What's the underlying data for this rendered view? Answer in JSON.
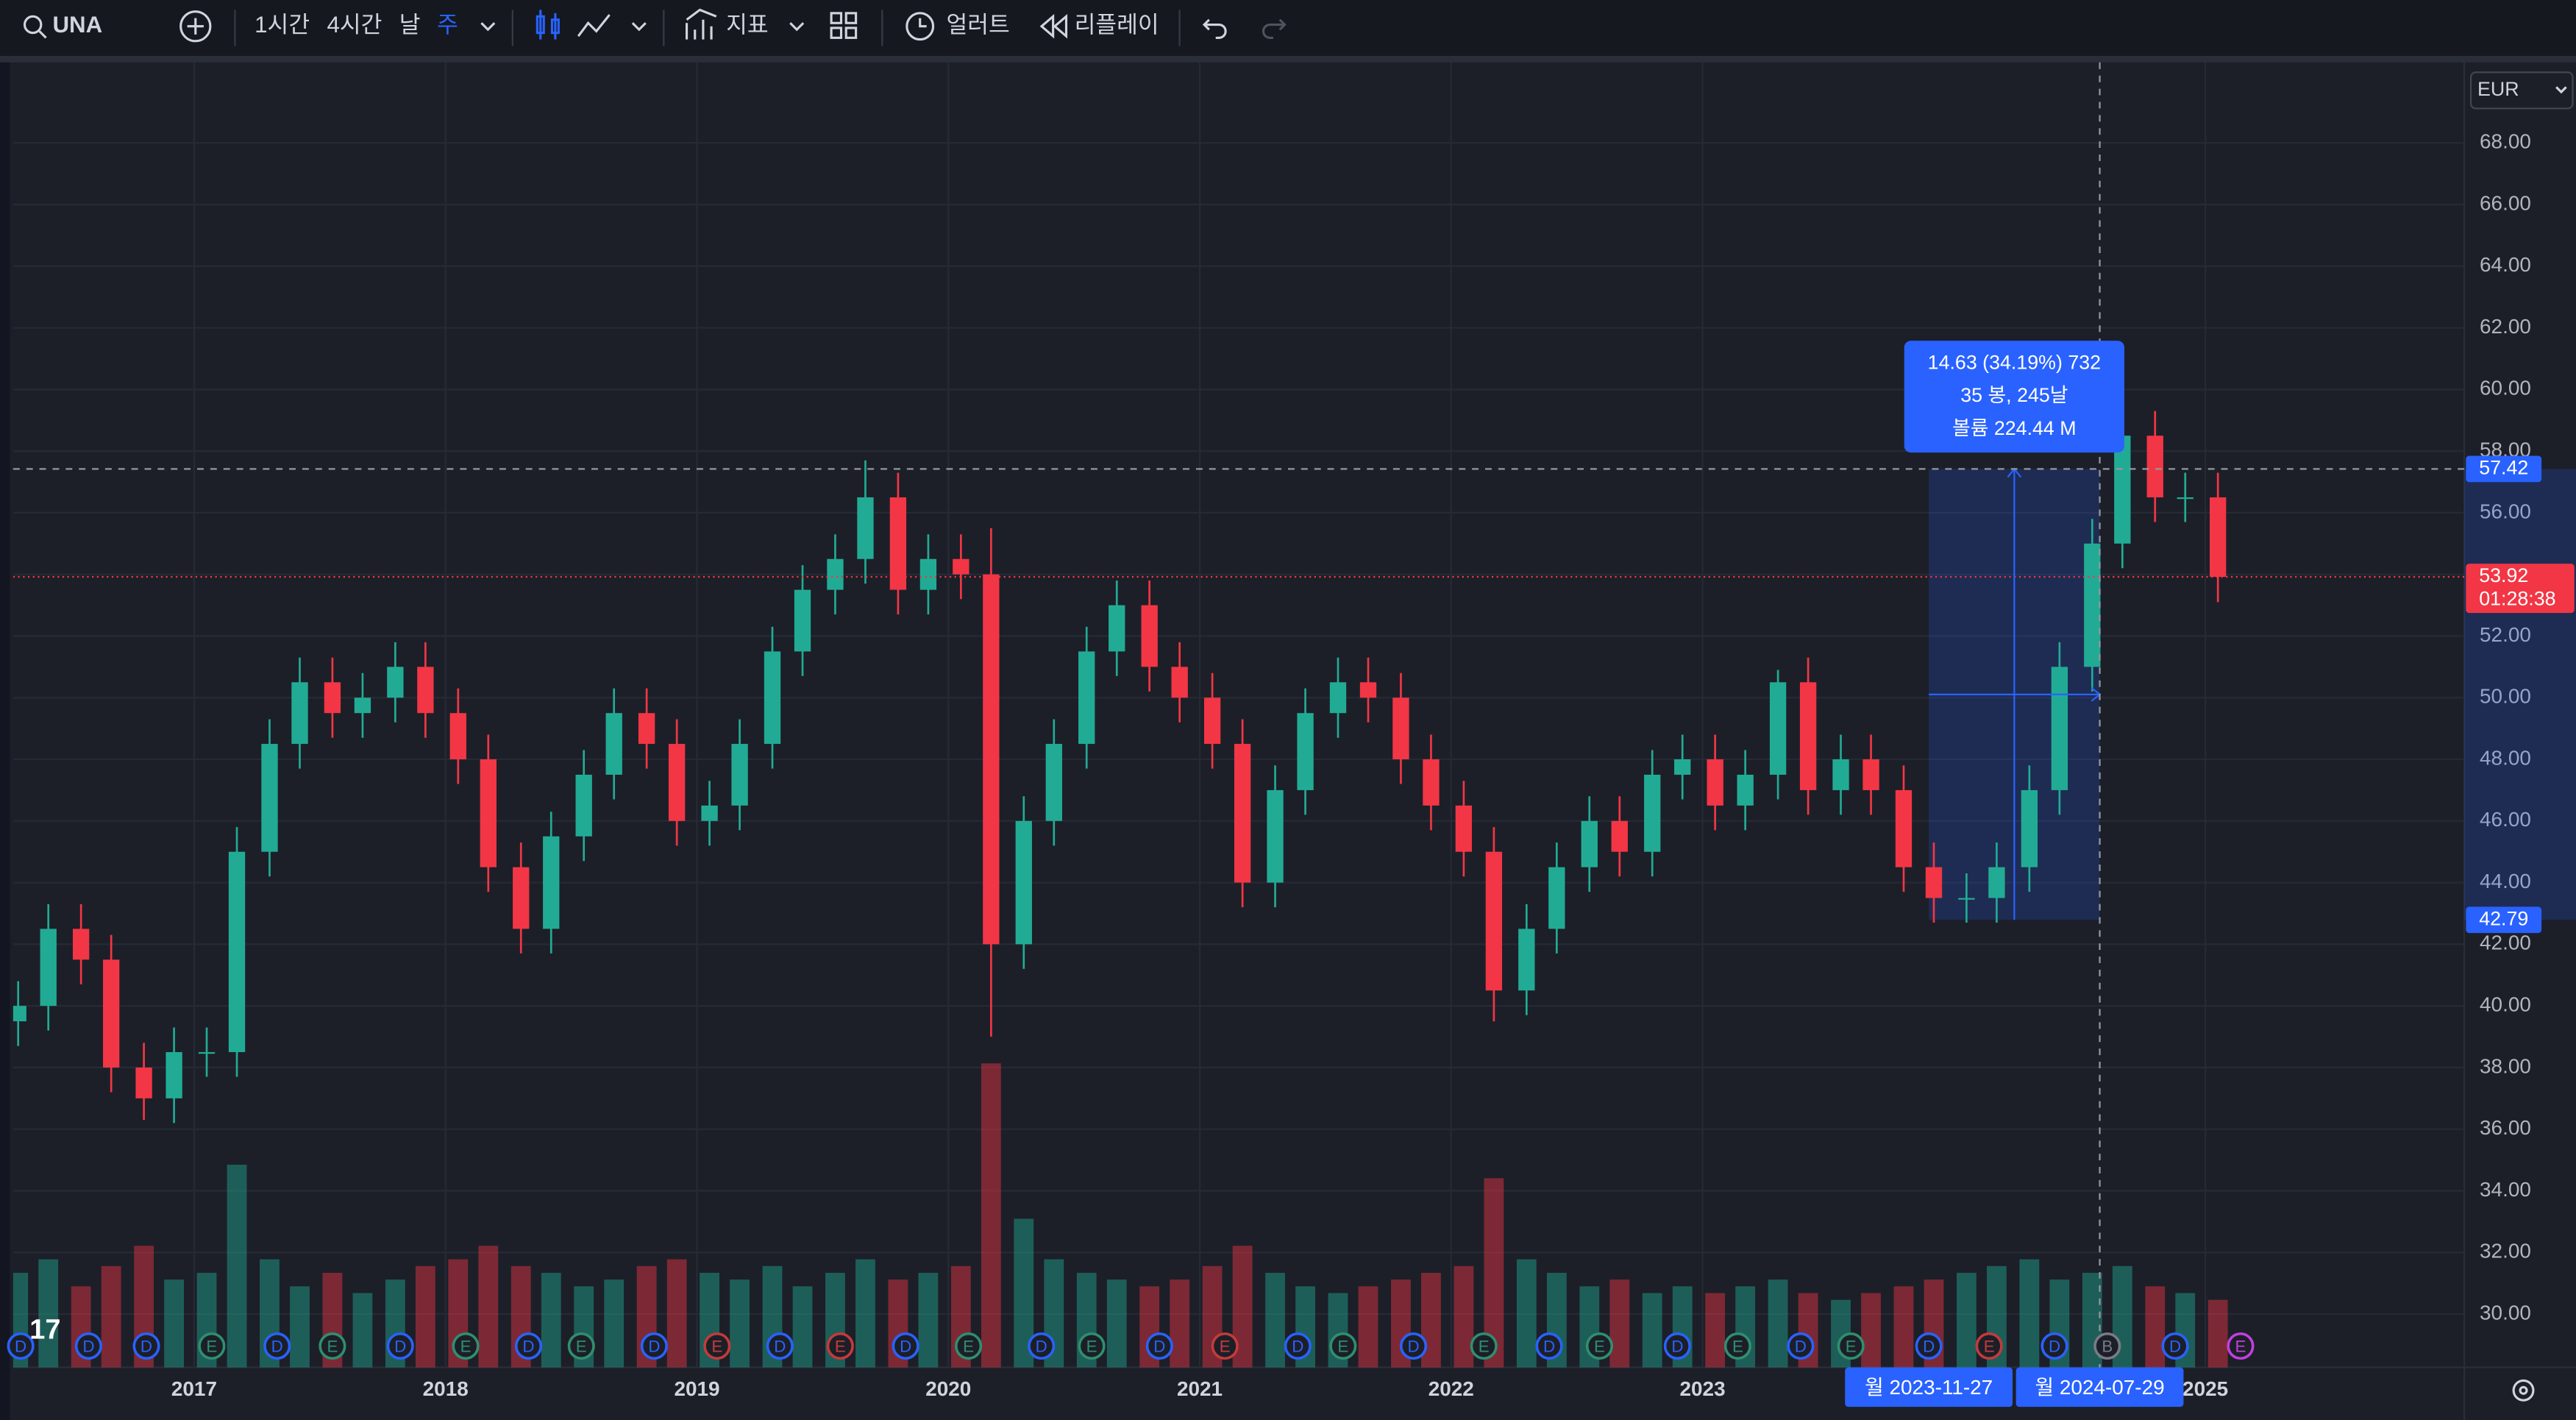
{
  "toolbar": {
    "symbol": "UNA",
    "intervals": [
      "1시간",
      "4시간",
      "날",
      "주"
    ],
    "indicators": "지표",
    "alert": "얼러트",
    "replay": "리플레이"
  },
  "currency": "EUR",
  "chart_data": {
    "type": "candlestick",
    "x": [
      2016.3,
      2016.42,
      2016.55,
      2016.67,
      2016.8,
      2016.92,
      2017.05,
      2017.17,
      2017.3,
      2017.42,
      2017.55,
      2017.67,
      2017.8,
      2017.92,
      2018.05,
      2018.17,
      2018.3,
      2018.42,
      2018.55,
      2018.67,
      2018.8,
      2018.92,
      2019.05,
      2019.17,
      2019.3,
      2019.42,
      2019.55,
      2019.67,
      2019.8,
      2019.92,
      2020.05,
      2020.17,
      2020.3,
      2020.42,
      2020.55,
      2020.67,
      2020.8,
      2020.92,
      2021.05,
      2021.17,
      2021.3,
      2021.42,
      2021.55,
      2021.67,
      2021.8,
      2021.92,
      2022.05,
      2022.17,
      2022.3,
      2022.42,
      2022.55,
      2022.67,
      2022.8,
      2022.92,
      2023.05,
      2023.17,
      2023.3,
      2023.42,
      2023.55,
      2023.67,
      2023.8,
      2023.92,
      2024.05,
      2024.17,
      2024.3,
      2024.42,
      2024.55,
      2024.67,
      2024.8,
      2024.92,
      2025.05
    ],
    "open": [
      39.5,
      40.0,
      42.5,
      41.5,
      38.0,
      37.0,
      38.5,
      38.5,
      45.0,
      48.5,
      50.5,
      49.5,
      50.0,
      51.0,
      49.5,
      48.0,
      44.5,
      42.5,
      45.5,
      47.5,
      49.5,
      48.5,
      46.0,
      46.5,
      48.5,
      51.5,
      53.5,
      54.5,
      56.5,
      53.5,
      54.5,
      54.0,
      42.0,
      46.0,
      48.5,
      51.5,
      53.0,
      51.0,
      50.0,
      48.5,
      44.0,
      47.0,
      49.5,
      50.5,
      50.0,
      48.0,
      46.5,
      45.0,
      40.5,
      42.5,
      44.5,
      46.0,
      45.0,
      47.5,
      48.0,
      46.5,
      47.5,
      50.5,
      47.0,
      48.0,
      47.0,
      44.5,
      43.5,
      43.5,
      44.5,
      47.0,
      51.0,
      55.0,
      58.5,
      56.5,
      56.5
    ],
    "high": [
      40.8,
      43.3,
      43.3,
      42.3,
      38.8,
      39.3,
      39.3,
      45.8,
      49.3,
      51.3,
      51.3,
      50.8,
      51.8,
      51.8,
      50.3,
      48.8,
      45.3,
      46.3,
      48.3,
      50.3,
      50.3,
      49.3,
      47.3,
      49.3,
      52.3,
      54.3,
      55.3,
      57.7,
      57.3,
      55.3,
      55.3,
      55.5,
      46.8,
      49.3,
      52.3,
      53.8,
      53.8,
      51.8,
      50.8,
      49.3,
      47.8,
      50.3,
      51.3,
      51.3,
      50.8,
      48.8,
      47.3,
      45.8,
      43.3,
      45.3,
      46.8,
      46.8,
      48.3,
      48.8,
      48.8,
      48.3,
      50.9,
      51.3,
      48.8,
      48.8,
      47.8,
      45.3,
      44.3,
      45.3,
      47.8,
      51.8,
      55.8,
      59.8,
      59.3,
      57.3,
      57.3
    ],
    "low": [
      38.7,
      39.2,
      40.7,
      37.2,
      36.3,
      36.2,
      37.7,
      37.7,
      44.2,
      47.7,
      48.7,
      48.7,
      49.2,
      48.7,
      47.2,
      43.7,
      41.7,
      41.7,
      44.7,
      46.7,
      47.7,
      45.2,
      45.2,
      45.7,
      47.7,
      50.7,
      52.7,
      53.7,
      52.7,
      52.7,
      53.2,
      39.0,
      41.2,
      45.2,
      47.7,
      50.7,
      50.2,
      49.2,
      47.7,
      43.2,
      43.2,
      46.2,
      48.7,
      49.2,
      47.2,
      45.7,
      44.2,
      39.5,
      39.7,
      41.7,
      43.7,
      44.2,
      44.2,
      46.7,
      45.7,
      45.7,
      46.7,
      46.2,
      46.2,
      46.2,
      43.7,
      42.7,
      42.7,
      42.7,
      43.7,
      46.2,
      50.2,
      54.2,
      55.7,
      55.7,
      53.1
    ],
    "close": [
      40.0,
      42.5,
      41.5,
      38.0,
      37.0,
      38.5,
      38.5,
      45.0,
      48.5,
      50.5,
      49.5,
      50.0,
      51.0,
      49.5,
      48.0,
      44.5,
      42.5,
      45.5,
      47.5,
      49.5,
      48.5,
      46.0,
      46.5,
      48.5,
      51.5,
      53.5,
      54.5,
      56.5,
      53.5,
      54.5,
      54.0,
      42.0,
      46.0,
      48.5,
      51.5,
      53.0,
      51.0,
      50.0,
      48.5,
      44.0,
      47.0,
      49.5,
      50.5,
      50.0,
      48.0,
      46.5,
      45.0,
      40.5,
      42.5,
      44.5,
      46.0,
      45.0,
      47.5,
      48.0,
      46.5,
      47.5,
      50.5,
      47.0,
      48.0,
      47.0,
      44.5,
      43.5,
      43.5,
      44.5,
      47.0,
      51.0,
      55.0,
      58.5,
      56.5,
      56.5,
      53.92
    ],
    "volume": [
      14,
      16,
      12,
      15,
      18,
      13,
      14,
      30,
      16,
      12,
      14,
      11,
      13,
      15,
      16,
      18,
      15,
      14,
      12,
      13,
      15,
      16,
      14,
      13,
      15,
      12,
      14,
      16,
      13,
      14,
      15,
      45,
      22,
      16,
      14,
      13,
      12,
      13,
      15,
      18,
      14,
      12,
      11,
      12,
      13,
      14,
      15,
      28,
      16,
      14,
      12,
      13,
      11,
      12,
      11,
      12,
      13,
      11,
      10,
      11,
      12,
      13,
      14,
      15,
      16,
      13,
      14,
      15,
      12,
      11,
      10
    ],
    "up_color": "#22ab94",
    "down_color": "#f23645",
    "xlim": [
      2016.28,
      2026.03
    ],
    "ylim": [
      28.27,
      70.61
    ],
    "xticks": [
      2017,
      2018,
      2019,
      2020,
      2021,
      2022,
      2023,
      2025
    ],
    "yticks": [
      {
        "value": 30,
        "label": "30.00"
      },
      {
        "value": 32,
        "label": "32.00"
      },
      {
        "value": 34,
        "label": "34.00"
      },
      {
        "value": 36,
        "label": "36.00"
      },
      {
        "value": 38,
        "label": "38.00"
      },
      {
        "value": 40,
        "label": "40.00"
      },
      {
        "value": 42,
        "label": "42.00"
      },
      {
        "value": 44,
        "label": "44.00"
      },
      {
        "value": 46,
        "label": "46.00"
      },
      {
        "value": 48,
        "label": "48.00"
      },
      {
        "value": 50,
        "label": "50.00"
      },
      {
        "value": 52,
        "label": "52.00"
      },
      {
        "value": 54,
        "label": "54.00"
      },
      {
        "value": 56,
        "label": "56.00"
      },
      {
        "value": 58,
        "label": "58.00"
      },
      {
        "value": 60,
        "label": "60.00"
      },
      {
        "value": 62,
        "label": "62.00"
      },
      {
        "value": 64,
        "label": "64.00"
      },
      {
        "value": 66,
        "label": "66.00"
      },
      {
        "value": 68,
        "label": "68.00"
      }
    ],
    "grid": true,
    "last_price": 53.92,
    "countdown": "01:28:38",
    "measure": {
      "from": {
        "x": 2023.9,
        "price": 42.79,
        "date_label": "월 2023-11-27"
      },
      "to": {
        "x": 2024.58,
        "price": 57.42,
        "date_label": "월 2024-07-29"
      },
      "lines": [
        "14.63 (34.19%) 732",
        "35 봉, 245날",
        "볼륨 224.44 M"
      ],
      "color": "#2962ff"
    },
    "events": [
      {
        "x": 2016.31,
        "label": "D",
        "color": "#2962ff"
      },
      {
        "x": 2016.58,
        "label": "D",
        "color": "#2962ff"
      },
      {
        "x": 2016.81,
        "label": "D",
        "color": "#2962ff"
      },
      {
        "x": 2017.07,
        "label": "E",
        "color": "#2f8f6e"
      },
      {
        "x": 2017.33,
        "label": "D",
        "color": "#2962ff"
      },
      {
        "x": 2017.55,
        "label": "E",
        "color": "#2f8f6e"
      },
      {
        "x": 2017.82,
        "label": "D",
        "color": "#2962ff"
      },
      {
        "x": 2018.08,
        "label": "E",
        "color": "#2f8f6e"
      },
      {
        "x": 2018.33,
        "label": "D",
        "color": "#2962ff"
      },
      {
        "x": 2018.54,
        "label": "E",
        "color": "#2f8f6e"
      },
      {
        "x": 2018.83,
        "label": "D",
        "color": "#2962ff"
      },
      {
        "x": 2019.08,
        "label": "E",
        "color": "#c53a3a"
      },
      {
        "x": 2019.33,
        "label": "D",
        "color": "#2962ff"
      },
      {
        "x": 2019.57,
        "label": "E",
        "color": "#c53a3a"
      },
      {
        "x": 2019.83,
        "label": "D",
        "color": "#2962ff"
      },
      {
        "x": 2020.08,
        "label": "E",
        "color": "#2f8f6e"
      },
      {
        "x": 2020.37,
        "label": "D",
        "color": "#2962ff"
      },
      {
        "x": 2020.57,
        "label": "E",
        "color": "#2f8f6e"
      },
      {
        "x": 2020.84,
        "label": "D",
        "color": "#2962ff"
      },
      {
        "x": 2021.1,
        "label": "E",
        "color": "#c53a3a"
      },
      {
        "x": 2021.39,
        "label": "D",
        "color": "#2962ff"
      },
      {
        "x": 2021.57,
        "label": "E",
        "color": "#2f8f6e"
      },
      {
        "x": 2021.85,
        "label": "D",
        "color": "#2962ff"
      },
      {
        "x": 2022.13,
        "label": "E",
        "color": "#2f8f6e"
      },
      {
        "x": 2022.39,
        "label": "D",
        "color": "#2962ff"
      },
      {
        "x": 2022.59,
        "label": "E",
        "color": "#2f8f6e"
      },
      {
        "x": 2022.9,
        "label": "D",
        "color": "#2962ff"
      },
      {
        "x": 2023.14,
        "label": "E",
        "color": "#2f8f6e"
      },
      {
        "x": 2023.39,
        "label": "D",
        "color": "#2962ff"
      },
      {
        "x": 2023.59,
        "label": "E",
        "color": "#2f8f6e"
      },
      {
        "x": 2023.9,
        "label": "D",
        "color": "#2962ff"
      },
      {
        "x": 2024.14,
        "label": "E",
        "color": "#c53a3a"
      },
      {
        "x": 2024.4,
        "label": "D",
        "color": "#2962ff"
      },
      {
        "x": 2024.61,
        "label": "B",
        "color": "#787b86"
      },
      {
        "x": 2024.88,
        "label": "D",
        "color": "#2962ff"
      },
      {
        "x": 2025.14,
        "label": "E",
        "color": "#c040e0"
      }
    ]
  }
}
